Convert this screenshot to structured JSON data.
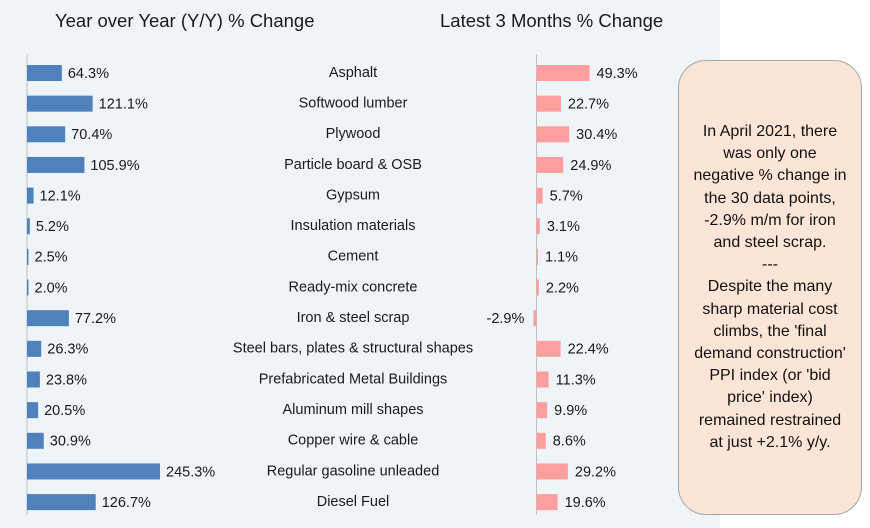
{
  "titles": {
    "left": "Year over Year (Y/Y) % Change",
    "right": "Latest 3 Months % Change"
  },
  "note": "In April 2021, there was only one negative % change in the 30 data points, -2.9% m/m for iron and steel scrap.\n---\nDespite the many sharp material cost climbs, the 'final demand construction' PPI index (or 'bid price' index) remained restrained at just +2.1% y/y.",
  "colors": {
    "yoy_bar": "#4f81bd",
    "m3_bar": "#ff9e9e",
    "axis": "#bfbfbf",
    "background": "#eef4f7",
    "note_fill": "#fbe5d6"
  },
  "chart_data": [
    {
      "type": "bar",
      "orientation": "horizontal",
      "title": "Year over Year (Y/Y) % Change",
      "categories": [
        "Asphalt",
        "Softwood lumber",
        "Plywood",
        "Particle board & OSB",
        "Gypsum",
        "Insulation materials",
        "Cement",
        "Ready-mix concrete",
        "Iron & steel scrap",
        "Steel bars, plates & structural shapes",
        "Prefabricated Metal Buildings",
        "Aluminum mill shapes",
        "Copper wire & cable",
        "Regular gasoline unleaded",
        "Diesel Fuel"
      ],
      "values": [
        64.3,
        121.1,
        70.4,
        105.9,
        12.1,
        5.2,
        2.5,
        2.0,
        77.2,
        26.3,
        23.8,
        20.5,
        30.9,
        245.3,
        126.7
      ],
      "labels": [
        "64.3%",
        "121.1%",
        "70.4%",
        "105.9%",
        "12.1%",
        "5.2%",
        "2.5%",
        "2.0%",
        "77.2%",
        "26.3%",
        "23.8%",
        "20.5%",
        "30.9%",
        "245.3%",
        "126.7%"
      ]
    },
    {
      "type": "bar",
      "orientation": "horizontal",
      "title": "Latest 3 Months % Change",
      "categories": [
        "Asphalt",
        "Softwood lumber",
        "Plywood",
        "Particle board & OSB",
        "Gypsum",
        "Insulation materials",
        "Cement",
        "Ready-mix concrete",
        "Iron & steel scrap",
        "Steel bars, plates & structural shapes",
        "Prefabricated Metal Buildings",
        "Aluminum mill shapes",
        "Copper wire & cable",
        "Regular gasoline unleaded",
        "Diesel Fuel"
      ],
      "values": [
        49.3,
        22.7,
        30.4,
        24.9,
        5.7,
        3.1,
        1.1,
        2.2,
        -2.9,
        22.4,
        11.3,
        9.9,
        8.6,
        29.2,
        19.6
      ],
      "labels": [
        "49.3%",
        "22.7%",
        "30.4%",
        "24.9%",
        "5.7%",
        "3.1%",
        "1.1%",
        "2.2%",
        "-2.9%",
        "22.4%",
        "11.3%",
        "9.9%",
        "8.6%",
        "29.2%",
        "19.6%"
      ]
    }
  ]
}
